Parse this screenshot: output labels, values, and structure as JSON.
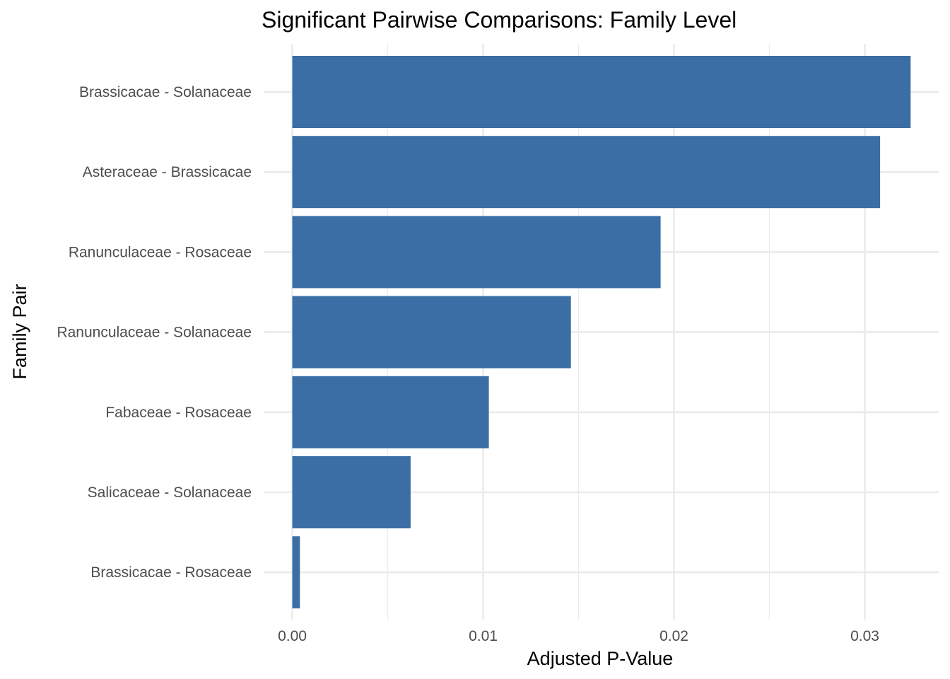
{
  "chart_data": {
    "type": "bar",
    "orientation": "horizontal",
    "title": "Significant Pairwise Comparisons: Family Level",
    "xlabel": "Adjusted P-Value",
    "ylabel": "Family Pair",
    "categories": [
      "Brassicacae - Solanaceae",
      "Asteraceae - Brassicacae",
      "Ranunculaceae - Rosaceae",
      "Ranunculaceae - Solanaceae",
      "Fabaceae - Rosaceae",
      "Salicaceae - Solanaceae",
      "Brassicacae - Rosaceae"
    ],
    "values": [
      0.0324,
      0.0308,
      0.0193,
      0.0146,
      0.0103,
      0.0062,
      0.0004
    ],
    "xlim": [
      0,
      0.0325
    ],
    "xticks": [
      0.0,
      0.01,
      0.02,
      0.03
    ],
    "xtick_labels": [
      "0.00",
      "0.01",
      "0.02",
      "0.03"
    ],
    "grid": true,
    "bar_color": "#3a6ea5",
    "legend": "none"
  }
}
